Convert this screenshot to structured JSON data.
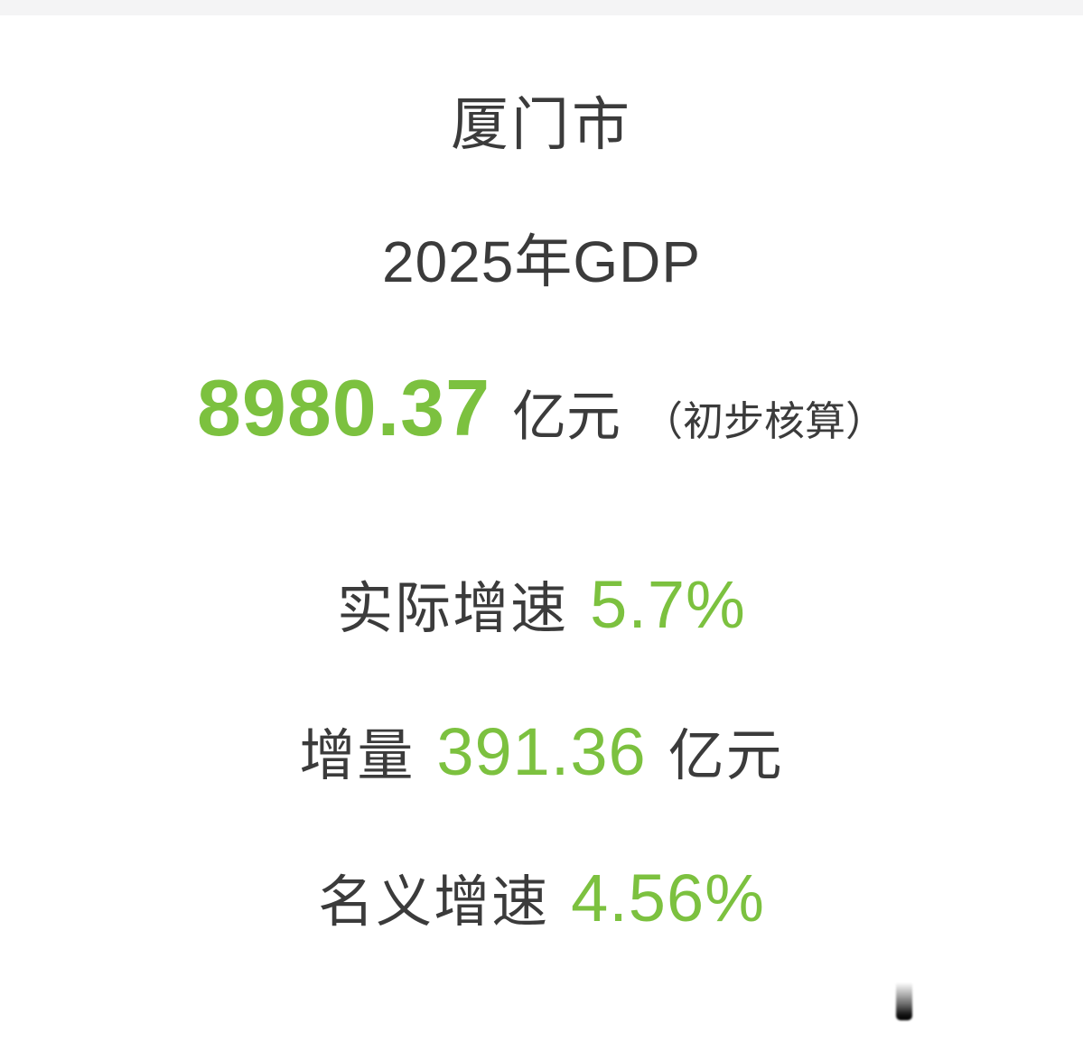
{
  "theme": {
    "accent_green": "#7cc13f",
    "text_dark": "#3b3b3b",
    "top_strip": "#f4f4f5",
    "background": "#ffffff"
  },
  "card": {
    "city": "厦门市",
    "title": "2025年GDP",
    "gdp": {
      "value": "8980.37",
      "unit": "亿元",
      "note": "（初步核算）"
    },
    "metrics": [
      {
        "label": "实际增速",
        "value": "5.7%",
        "unit": ""
      },
      {
        "label": "增量",
        "value": "391.36",
        "unit": "亿元"
      },
      {
        "label": "名义增速",
        "value": "4.56%",
        "unit": ""
      }
    ]
  }
}
